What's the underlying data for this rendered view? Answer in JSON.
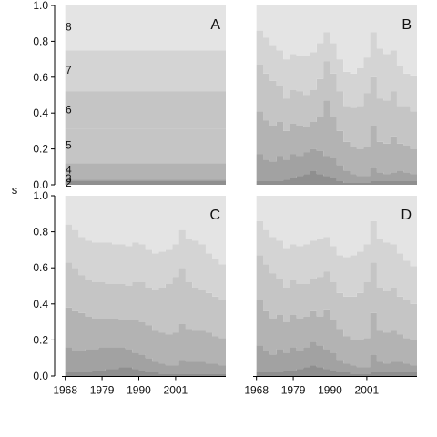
{
  "figure": {
    "ylabel": "s",
    "y_ticks": [
      "0.0",
      "0.2",
      "0.4",
      "0.6",
      "0.8",
      "1.0"
    ],
    "x_ticks": [
      "1968",
      "1979",
      "1990",
      "2001"
    ],
    "colors": [
      "#8f8f8f",
      "#a2a2a2",
      "#b3b3b3",
      "#c5c5c5",
      "#d4d4d4",
      "#e4e4e4"
    ]
  },
  "chart_data": [
    {
      "type": "area",
      "panel": "A",
      "layout": "stacked step area (cumulative shares summing to 1.0)",
      "x": [
        1968,
        1970,
        1972,
        1974,
        1976,
        1978,
        1980,
        1982,
        1984,
        1986,
        1988,
        1990,
        1992,
        1994,
        1996,
        1998,
        2000,
        2002,
        2004,
        2006,
        2008,
        2010,
        2012,
        2014,
        2016
      ],
      "ylim": [
        0,
        1
      ],
      "xlim": [
        1967,
        2016
      ],
      "cumulative_boundaries": [
        {
          "label": "2",
          "values": [
            0.02,
            0.02,
            0.02,
            0.02,
            0.02,
            0.02,
            0.02,
            0.02,
            0.02,
            0.02,
            0.02,
            0.02,
            0.02,
            0.02,
            0.02,
            0.02,
            0.02,
            0.02,
            0.02,
            0.02,
            0.02,
            0.02,
            0.02,
            0.02,
            0.02
          ]
        },
        {
          "label": "3",
          "values": [
            0.03,
            0.03,
            0.03,
            0.03,
            0.03,
            0.03,
            0.03,
            0.03,
            0.03,
            0.03,
            0.03,
            0.03,
            0.03,
            0.03,
            0.03,
            0.03,
            0.03,
            0.03,
            0.03,
            0.03,
            0.03,
            0.03,
            0.03,
            0.03,
            0.03
          ]
        },
        {
          "label": "4",
          "values": [
            0.12,
            0.12,
            0.12,
            0.12,
            0.12,
            0.12,
            0.12,
            0.12,
            0.12,
            0.12,
            0.12,
            0.12,
            0.12,
            0.12,
            0.12,
            0.12,
            0.12,
            0.12,
            0.12,
            0.12,
            0.12,
            0.12,
            0.12,
            0.12,
            0.12
          ]
        },
        {
          "label": "5",
          "values": [
            0.31,
            0.31,
            0.31,
            0.31,
            0.31,
            0.31,
            0.31,
            0.31,
            0.31,
            0.31,
            0.31,
            0.31,
            0.31,
            0.31,
            0.31,
            0.31,
            0.31,
            0.31,
            0.31,
            0.31,
            0.31,
            0.31,
            0.31,
            0.31,
            0.31
          ]
        },
        {
          "label": "6",
          "values": [
            0.52,
            0.52,
            0.52,
            0.52,
            0.52,
            0.52,
            0.52,
            0.52,
            0.52,
            0.52,
            0.52,
            0.52,
            0.52,
            0.52,
            0.52,
            0.52,
            0.52,
            0.52,
            0.52,
            0.52,
            0.52,
            0.52,
            0.52,
            0.52,
            0.52
          ]
        },
        {
          "label": "7",
          "values": [
            0.75,
            0.75,
            0.75,
            0.75,
            0.75,
            0.75,
            0.75,
            0.75,
            0.75,
            0.75,
            0.75,
            0.75,
            0.75,
            0.75,
            0.75,
            0.75,
            0.75,
            0.75,
            0.75,
            0.75,
            0.75,
            0.75,
            0.75,
            0.75,
            0.75
          ]
        }
      ],
      "level_labels": [
        {
          "text": "8",
          "y": 0.88
        },
        {
          "text": "7",
          "y": 0.64
        },
        {
          "text": "6",
          "y": 0.42
        },
        {
          "text": "5",
          "y": 0.22
        },
        {
          "text": "4",
          "y": 0.085
        },
        {
          "text": "3",
          "y": 0.035
        },
        {
          "text": "2",
          "y": 0.01
        }
      ]
    },
    {
      "type": "area",
      "panel": "B",
      "layout": "stacked step area (cumulative shares summing to 1.0)",
      "x": [
        1968,
        1970,
        1972,
        1974,
        1976,
        1978,
        1980,
        1982,
        1984,
        1986,
        1988,
        1990,
        1992,
        1994,
        1996,
        1998,
        2000,
        2002,
        2004,
        2006,
        2008,
        2010,
        2012,
        2014,
        2016
      ],
      "ylim": [
        0,
        1
      ],
      "xlim": [
        1967,
        2016
      ],
      "cumulative_boundaries": [
        {
          "values": [
            0.02,
            0.02,
            0.02,
            0.02,
            0.03,
            0.04,
            0.05,
            0.06,
            0.08,
            0.06,
            0.05,
            0.04,
            0.02,
            0.01,
            0.01,
            0.01,
            0.01,
            0.02,
            0.02,
            0.02,
            0.02,
            0.02,
            0.02,
            0.02,
            0.02
          ]
        },
        {
          "values": [
            0.17,
            0.14,
            0.13,
            0.16,
            0.14,
            0.17,
            0.16,
            0.18,
            0.2,
            0.19,
            0.16,
            0.15,
            0.11,
            0.08,
            0.06,
            0.05,
            0.05,
            0.1,
            0.07,
            0.06,
            0.07,
            0.08,
            0.07,
            0.06,
            0.05
          ]
        },
        {
          "values": [
            0.41,
            0.36,
            0.33,
            0.35,
            0.3,
            0.34,
            0.33,
            0.32,
            0.35,
            0.38,
            0.47,
            0.38,
            0.3,
            0.24,
            0.21,
            0.2,
            0.21,
            0.33,
            0.24,
            0.23,
            0.27,
            0.23,
            0.22,
            0.2,
            0.18
          ]
        },
        {
          "values": [
            0.67,
            0.62,
            0.58,
            0.55,
            0.48,
            0.53,
            0.52,
            0.5,
            0.53,
            0.59,
            0.69,
            0.62,
            0.52,
            0.44,
            0.43,
            0.44,
            0.51,
            0.6,
            0.48,
            0.47,
            0.52,
            0.44,
            0.44,
            0.41,
            0.36
          ]
        },
        {
          "values": [
            0.86,
            0.82,
            0.78,
            0.75,
            0.7,
            0.73,
            0.72,
            0.72,
            0.74,
            0.79,
            0.85,
            0.79,
            0.7,
            0.63,
            0.62,
            0.65,
            0.71,
            0.85,
            0.76,
            0.73,
            0.75,
            0.66,
            0.62,
            0.61,
            0.57
          ]
        }
      ]
    },
    {
      "type": "area",
      "panel": "C",
      "layout": "stacked step area (cumulative shares summing to 1.0)",
      "x": [
        1968,
        1970,
        1972,
        1974,
        1976,
        1978,
        1980,
        1982,
        1984,
        1986,
        1988,
        1990,
        1992,
        1994,
        1996,
        1998,
        2000,
        2002,
        2004,
        2006,
        2008,
        2010,
        2012,
        2014,
        2016
      ],
      "ylim": [
        0,
        1
      ],
      "xlim": [
        1967,
        2016
      ],
      "cumulative_boundaries": [
        {
          "values": [
            0.02,
            0.02,
            0.02,
            0.02,
            0.03,
            0.03,
            0.04,
            0.04,
            0.05,
            0.05,
            0.04,
            0.03,
            0.02,
            0.02,
            0.01,
            0.01,
            0.01,
            0.01,
            0.01,
            0.01,
            0.01,
            0.01,
            0.01,
            0.01,
            0.01
          ]
        },
        {
          "values": [
            0.16,
            0.14,
            0.14,
            0.15,
            0.15,
            0.16,
            0.16,
            0.16,
            0.16,
            0.15,
            0.13,
            0.12,
            0.1,
            0.08,
            0.07,
            0.06,
            0.06,
            0.09,
            0.08,
            0.08,
            0.08,
            0.07,
            0.07,
            0.06,
            0.06
          ]
        },
        {
          "values": [
            0.38,
            0.36,
            0.35,
            0.33,
            0.32,
            0.32,
            0.32,
            0.32,
            0.31,
            0.31,
            0.31,
            0.3,
            0.28,
            0.25,
            0.24,
            0.23,
            0.24,
            0.29,
            0.26,
            0.25,
            0.25,
            0.24,
            0.22,
            0.21,
            0.2
          ]
        },
        {
          "values": [
            0.63,
            0.6,
            0.56,
            0.53,
            0.52,
            0.52,
            0.51,
            0.51,
            0.51,
            0.5,
            0.52,
            0.52,
            0.49,
            0.48,
            0.49,
            0.51,
            0.55,
            0.6,
            0.52,
            0.49,
            0.48,
            0.46,
            0.44,
            0.42,
            0.4
          ]
        },
        {
          "values": [
            0.84,
            0.81,
            0.77,
            0.75,
            0.74,
            0.74,
            0.74,
            0.73,
            0.73,
            0.72,
            0.74,
            0.73,
            0.7,
            0.68,
            0.69,
            0.7,
            0.73,
            0.81,
            0.76,
            0.75,
            0.73,
            0.68,
            0.65,
            0.62,
            0.6
          ]
        }
      ]
    },
    {
      "type": "area",
      "panel": "D",
      "layout": "stacked step area (cumulative shares summing to 1.0)",
      "x": [
        1968,
        1970,
        1972,
        1974,
        1976,
        1978,
        1980,
        1982,
        1984,
        1986,
        1988,
        1990,
        1992,
        1994,
        1996,
        1998,
        2000,
        2002,
        2004,
        2006,
        2008,
        2010,
        2012,
        2014,
        2016
      ],
      "ylim": [
        0,
        1
      ],
      "xlim": [
        1967,
        2016
      ],
      "cumulative_boundaries": [
        {
          "values": [
            0.02,
            0.02,
            0.02,
            0.02,
            0.03,
            0.03,
            0.04,
            0.05,
            0.06,
            0.05,
            0.04,
            0.03,
            0.02,
            0.02,
            0.01,
            0.01,
            0.01,
            0.02,
            0.02,
            0.02,
            0.02,
            0.02,
            0.02,
            0.02,
            0.02
          ]
        },
        {
          "values": [
            0.17,
            0.14,
            0.12,
            0.15,
            0.13,
            0.16,
            0.14,
            0.16,
            0.19,
            0.17,
            0.15,
            0.13,
            0.09,
            0.07,
            0.06,
            0.05,
            0.05,
            0.12,
            0.08,
            0.07,
            0.08,
            0.08,
            0.07,
            0.06,
            0.05
          ]
        },
        {
          "values": [
            0.42,
            0.36,
            0.32,
            0.34,
            0.3,
            0.34,
            0.32,
            0.33,
            0.36,
            0.33,
            0.37,
            0.31,
            0.26,
            0.22,
            0.2,
            0.2,
            0.21,
            0.35,
            0.25,
            0.24,
            0.25,
            0.23,
            0.21,
            0.2,
            0.18
          ]
        },
        {
          "values": [
            0.67,
            0.62,
            0.57,
            0.54,
            0.49,
            0.53,
            0.51,
            0.51,
            0.54,
            0.55,
            0.58,
            0.52,
            0.46,
            0.44,
            0.44,
            0.46,
            0.52,
            0.63,
            0.49,
            0.47,
            0.49,
            0.44,
            0.42,
            0.4,
            0.36
          ]
        },
        {
          "values": [
            0.86,
            0.81,
            0.77,
            0.75,
            0.71,
            0.73,
            0.72,
            0.73,
            0.75,
            0.76,
            0.77,
            0.72,
            0.67,
            0.66,
            0.67,
            0.69,
            0.73,
            0.86,
            0.76,
            0.74,
            0.73,
            0.68,
            0.64,
            0.61,
            0.57
          ]
        }
      ]
    }
  ]
}
